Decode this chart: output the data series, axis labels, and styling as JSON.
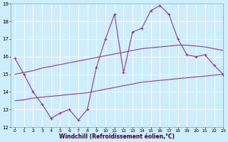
{
  "xlabel": "Windchill (Refroidissement éolien,°C)",
  "background_color": "#cceeff",
  "grid_color": "#ffffff",
  "line_color": "#993399",
  "hours": [
    0,
    1,
    2,
    3,
    4,
    5,
    6,
    7,
    8,
    9,
    10,
    11,
    12,
    13,
    14,
    15,
    16,
    17,
    18,
    19,
    20,
    21,
    22,
    23
  ],
  "windchill": [
    15.9,
    15.0,
    14.0,
    13.3,
    12.5,
    12.8,
    13.0,
    12.4,
    13.0,
    15.4,
    17.0,
    18.4,
    15.1,
    17.4,
    17.6,
    18.6,
    18.9,
    18.4,
    17.0,
    16.1,
    16.0,
    16.1,
    15.5,
    15.0
  ],
  "trend_upper": [
    15.0,
    15.1,
    15.2,
    15.35,
    15.45,
    15.55,
    15.65,
    15.75,
    15.85,
    15.95,
    16.05,
    16.15,
    16.25,
    16.35,
    16.45,
    16.5,
    16.55,
    16.6,
    16.65,
    16.65,
    16.6,
    16.55,
    16.45,
    16.35
  ],
  "trend_lower": [
    13.5,
    13.55,
    13.65,
    13.7,
    13.75,
    13.8,
    13.85,
    13.9,
    13.95,
    14.05,
    14.15,
    14.25,
    14.35,
    14.45,
    14.55,
    14.6,
    14.65,
    14.7,
    14.75,
    14.8,
    14.85,
    14.9,
    14.95,
    15.0
  ],
  "ylim": [
    12,
    19
  ],
  "xlim": [
    -0.5,
    23
  ],
  "yticks": [
    12,
    13,
    14,
    15,
    16,
    17,
    18,
    19
  ],
  "xticks": [
    0,
    1,
    2,
    3,
    4,
    5,
    6,
    7,
    8,
    9,
    10,
    11,
    12,
    13,
    14,
    15,
    16,
    17,
    18,
    19,
    20,
    21,
    22,
    23
  ]
}
